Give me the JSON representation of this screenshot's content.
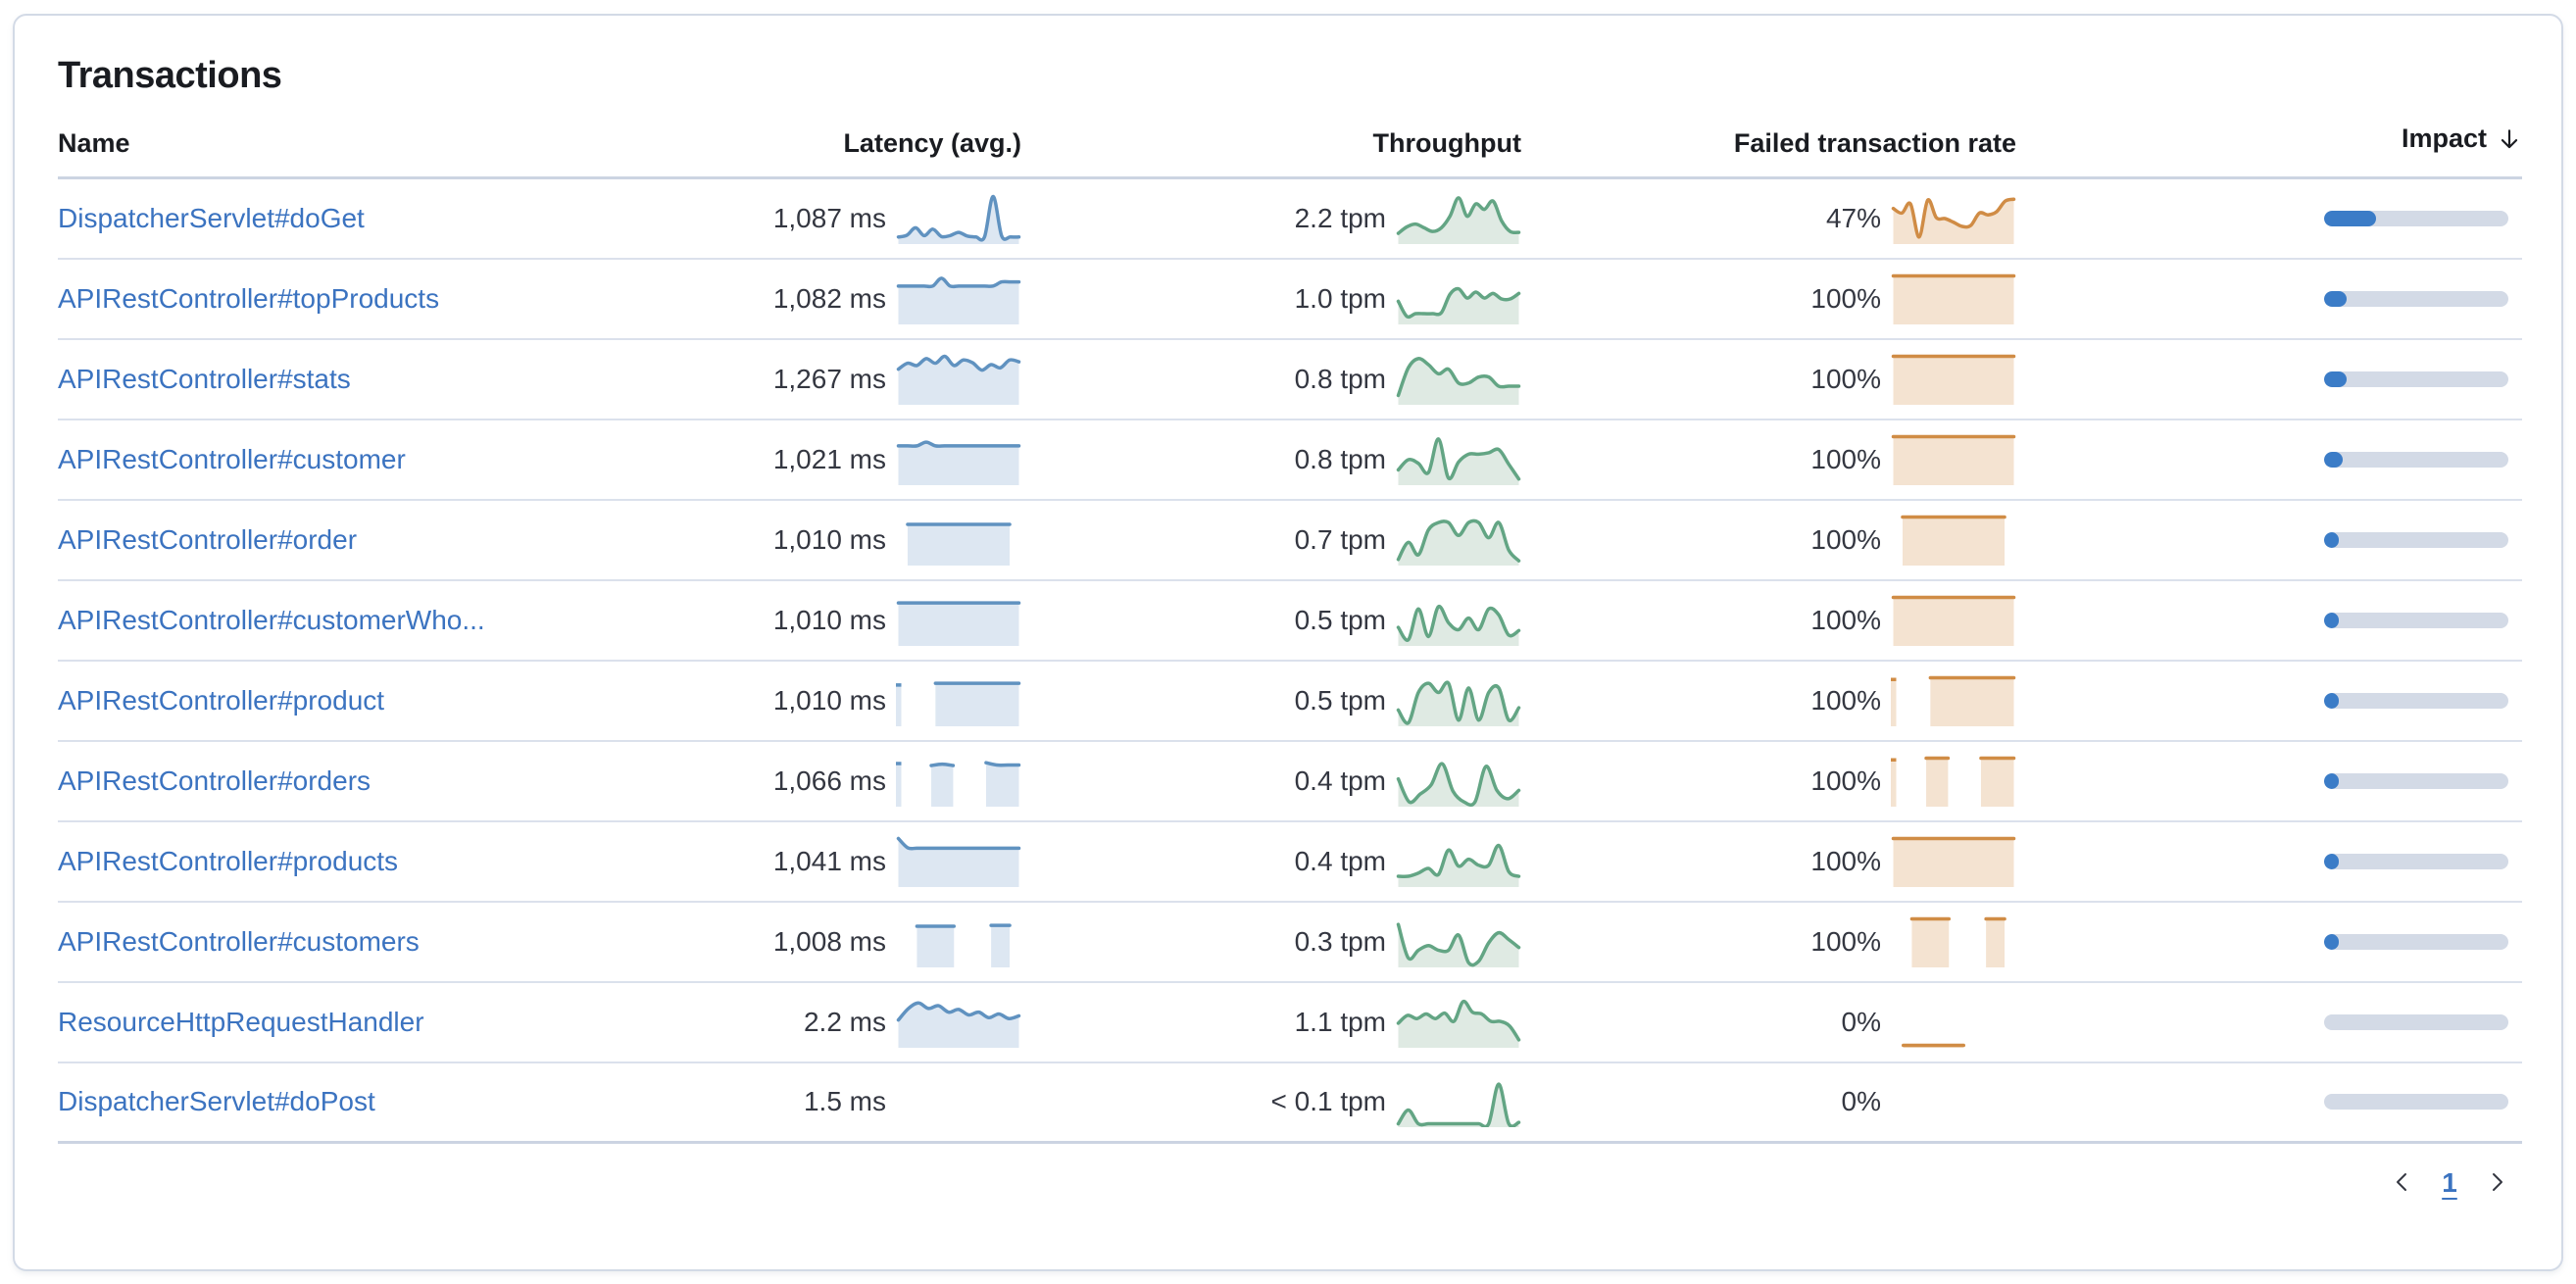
{
  "panel": {
    "title": "Transactions"
  },
  "table": {
    "columns": [
      {
        "key": "name",
        "label": "Name"
      },
      {
        "key": "latency",
        "label": "Latency (avg.)"
      },
      {
        "key": "throughput",
        "label": "Throughput"
      },
      {
        "key": "failed",
        "label": "Failed transaction rate"
      },
      {
        "key": "impact",
        "label": "Impact",
        "sorted": "desc",
        "sort_icon": "arrow-down"
      }
    ],
    "rows": [
      {
        "name": "DispatcherServlet#doGet",
        "latency": "1,087 ms",
        "throughput": "2.2 tpm",
        "failed_rate": "47%",
        "impact_pct": 28,
        "latency_spark": [
          0.1,
          0.14,
          0.3,
          0.13,
          0.27,
          0.11,
          0.13,
          0.2,
          0.12,
          0.1,
          0.1,
          0.98,
          0.12,
          0.1,
          0.1
        ],
        "throughput_spark": [
          0.18,
          0.32,
          0.38,
          0.3,
          0.22,
          0.3,
          0.55,
          0.95,
          0.55,
          0.82,
          0.7,
          0.88,
          0.45,
          0.22,
          0.2
        ],
        "failed_spark": [
          0.72,
          0.62,
          0.82,
          0.1,
          0.9,
          0.52,
          0.5,
          0.42,
          0.33,
          0.35,
          0.62,
          0.58,
          0.65,
          0.88,
          0.92
        ]
      },
      {
        "name": "APIRestController#topProducts",
        "latency": "1,082 ms",
        "throughput": "1.0 tpm",
        "failed_rate": "100%",
        "impact_pct": 12,
        "latency_spark": [
          0.78,
          0.78,
          0.78,
          0.78,
          0.78,
          0.95,
          0.78,
          0.78,
          0.78,
          0.78,
          0.78,
          0.78,
          0.87,
          0.87,
          0.87
        ],
        "throughput_spark": [
          0.45,
          0.12,
          0.18,
          0.18,
          0.18,
          0.2,
          0.6,
          0.72,
          0.52,
          0.65,
          0.52,
          0.62,
          0.5,
          0.5,
          0.62
        ],
        "failed_spark": [
          1,
          1,
          1,
          1,
          1,
          1,
          1,
          1,
          1,
          1,
          1,
          1,
          1,
          1
        ]
      },
      {
        "name": "APIRestController#stats",
        "latency": "1,267 ms",
        "throughput": "0.8 tpm",
        "failed_rate": "100%",
        "impact_pct": 12,
        "latency_spark": [
          0.72,
          0.85,
          0.8,
          0.95,
          0.85,
          1.0,
          0.8,
          0.92,
          0.86,
          0.7,
          0.82,
          0.75,
          0.92,
          0.88
        ],
        "throughput_spark": [
          0.15,
          0.75,
          0.95,
          0.82,
          0.62,
          0.72,
          0.42,
          0.42,
          0.55,
          0.55,
          0.35,
          0.35,
          0.35
        ],
        "failed_spark": [
          1,
          1,
          1,
          1,
          1,
          1,
          1,
          1,
          1,
          1,
          1,
          1,
          1,
          1
        ]
      },
      {
        "name": "APIRestController#customer",
        "latency": "1,021 ms",
        "throughput": "0.8 tpm",
        "failed_rate": "100%",
        "impact_pct": 10,
        "latency_spark": [
          0.8,
          0.8,
          0.8,
          0.88,
          0.8,
          0.8,
          0.8,
          0.8,
          0.8,
          0.8,
          0.8,
          0.8,
          0.8,
          0.8
        ],
        "throughput_spark": [
          0.28,
          0.5,
          0.42,
          0.22,
          0.95,
          0.1,
          0.45,
          0.62,
          0.62,
          0.65,
          0.72,
          0.4,
          0.08
        ],
        "failed_spark": [
          1,
          1,
          1,
          1,
          1,
          1,
          1,
          1,
          1,
          1,
          1,
          1,
          1,
          1
        ]
      },
      {
        "name": "APIRestController#order",
        "latency": "1,010 ms",
        "throughput": "0.7 tpm",
        "failed_rate": "100%",
        "impact_pct": 8,
        "latency_spark": [
          null,
          0.84,
          0.84,
          0.84,
          0.84,
          0.84,
          0.84,
          0.84,
          0.84,
          0.84,
          0.84,
          0.84,
          0.84,
          null
        ],
        "throughput_spark": [
          0.08,
          0.45,
          0.18,
          0.72,
          0.88,
          0.88,
          0.6,
          0.88,
          0.88,
          0.55,
          0.88,
          0.28,
          0.05
        ],
        "failed_spark": [
          null,
          1,
          1,
          1,
          1,
          1,
          1,
          1,
          1,
          1,
          1,
          1,
          1,
          null
        ]
      },
      {
        "name": "APIRestController#customerWho...",
        "latency": "1,010 ms",
        "throughput": "0.5 tpm",
        "failed_rate": "100%",
        "impact_pct": 6,
        "latency_spark": [
          0.88,
          0.88,
          0.88,
          0.88,
          0.88,
          0.88,
          0.88,
          0.88,
          0.88,
          0.88,
          0.88,
          0.88,
          0.88,
          0.88
        ],
        "throughput_spark": [
          0.35,
          0.08,
          0.75,
          0.15,
          0.8,
          0.45,
          0.3,
          0.55,
          0.3,
          0.75,
          0.62,
          0.18,
          0.28
        ],
        "failed_spark": [
          1,
          1,
          1,
          1,
          1,
          1,
          1,
          1,
          1,
          1,
          1,
          1,
          1,
          1
        ]
      },
      {
        "name": "APIRestController#product",
        "latency": "1,010 ms",
        "throughput": "0.5 tpm",
        "failed_rate": "100%",
        "impact_pct": 6,
        "latency_spark": [
          0.88,
          null,
          null,
          null,
          0.88,
          0.88,
          0.88,
          0.88,
          0.88,
          0.88,
          0.88,
          0.88,
          0.88,
          0.88
        ],
        "throughput_spark": [
          0.3,
          0.02,
          0.68,
          0.88,
          0.68,
          0.88,
          0.08,
          0.78,
          0.08,
          0.68,
          0.78,
          0.08,
          0.35
        ],
        "failed_spark": [
          1,
          null,
          null,
          null,
          1,
          1,
          1,
          1,
          1,
          1,
          1,
          1,
          1,
          1
        ]
      },
      {
        "name": "APIRestController#orders",
        "latency": "1,066 ms",
        "throughput": "0.4 tpm",
        "failed_rate": "100%",
        "impact_pct": 5,
        "latency_spark": [
          0.92,
          null,
          null,
          0.84,
          0.87,
          0.84,
          null,
          null,
          0.9,
          0.85,
          0.85,
          0.85
        ],
        "throughput_spark": [
          0.55,
          0.05,
          0.22,
          0.42,
          0.88,
          0.28,
          0.05,
          0.05,
          0.82,
          0.3,
          0.12,
          0.3
        ],
        "failed_spark": [
          1,
          null,
          null,
          1,
          1,
          1,
          null,
          null,
          1,
          1,
          1,
          1
        ]
      },
      {
        "name": "APIRestController#products",
        "latency": "1,041 ms",
        "throughput": "0.4 tpm",
        "failed_rate": "100%",
        "impact_pct": 4.5,
        "latency_spark": [
          1.0,
          0.8,
          0.79,
          0.79,
          0.79,
          0.79,
          0.79,
          0.79,
          0.79,
          0.79,
          0.79,
          0.79,
          0.79,
          0.79
        ],
        "throughput_spark": [
          0.18,
          0.18,
          0.25,
          0.35,
          0.22,
          0.75,
          0.4,
          0.55,
          0.42,
          0.42,
          0.85,
          0.28,
          0.18
        ],
        "failed_spark": [
          1,
          1,
          1,
          1,
          1,
          1,
          1,
          1,
          1,
          1,
          1,
          1,
          1,
          1
        ]
      },
      {
        "name": "APIRestController#customers",
        "latency": "1,008 ms",
        "throughput": "0.3 tpm",
        "failed_rate": "100%",
        "impact_pct": 3.5,
        "latency_spark": [
          null,
          null,
          0.84,
          0.84,
          0.84,
          0.84,
          0.84,
          null,
          null,
          null,
          0.86,
          0.86,
          0.86,
          null
        ],
        "throughput_spark": [
          0.88,
          0.15,
          0.32,
          0.42,
          0.32,
          0.32,
          0.65,
          0.05,
          0.08,
          0.48,
          0.7,
          0.55,
          0.38
        ],
        "failed_spark": [
          null,
          null,
          1,
          1,
          1,
          1,
          1,
          null,
          null,
          null,
          1,
          1,
          1,
          null
        ]
      },
      {
        "name": "ResourceHttpRequestHandler",
        "latency": "2.2 ms",
        "throughput": "1.1 tpm",
        "failed_rate": "0%",
        "impact_pct": 0,
        "latency_spark": [
          0.55,
          0.8,
          0.92,
          0.8,
          0.86,
          0.72,
          0.78,
          0.66,
          0.72,
          0.6,
          0.68,
          0.58,
          0.64
        ],
        "throughput_spark": [
          0.48,
          0.65,
          0.58,
          0.68,
          0.58,
          0.7,
          0.52,
          0.95,
          0.72,
          0.68,
          0.52,
          0.52,
          0.42,
          0.12
        ],
        "failed_spark": [
          null,
          0,
          0,
          0,
          0,
          0,
          0,
          0,
          null,
          null,
          null,
          null,
          null
        ]
      },
      {
        "name": "DispatcherServlet#doPost",
        "latency": "1.5 ms",
        "throughput": "< 0.1 tpm",
        "failed_rate": "0%",
        "impact_pct": 0,
        "latency_spark": [],
        "throughput_spark": [
          0.02,
          0.32,
          0.02,
          0.02,
          0.02,
          0.02,
          0.02,
          0.02,
          0.02,
          0.02,
          0.88,
          0.02,
          0.05
        ],
        "failed_spark": []
      }
    ]
  },
  "pagination": {
    "prev_icon": "chevron-left",
    "page": "1",
    "next_icon": "chevron-right"
  },
  "colors": {
    "latency_line": "#6092c0",
    "latency_fill": "#dde7f2",
    "throughput_line": "#63a584",
    "throughput_fill": "#dfeae3",
    "failed_line": "#d08c45",
    "failed_fill": "#f4e3d1",
    "impact_fill": "#3b7cc7",
    "impact_track": "#d3dae6",
    "link": "#3b73c0"
  }
}
